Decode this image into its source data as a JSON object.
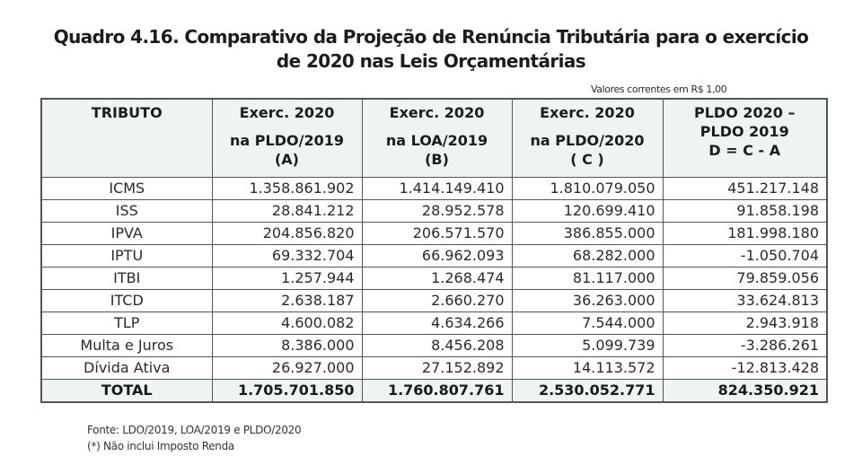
{
  "title": {
    "line1": "Quadro 4.16. Comparativo da Projeção de Renúncia Tributária para o exercício",
    "line2": "de 2020 nas Leis Orçamentárias"
  },
  "units_note": "Valores correntes em R$ 1,00",
  "table": {
    "headers": [
      {
        "lines": [
          "TRIBUTO"
        ]
      },
      {
        "lines": [
          "Exerc. 2020",
          "na PLDO/2019",
          "(A)"
        ]
      },
      {
        "lines": [
          "Exerc. 2020",
          "na LOA/2019",
          "(B)"
        ]
      },
      {
        "lines": [
          "Exerc. 2020",
          "na PLDO/2020",
          "( C )"
        ]
      },
      {
        "lines": [
          "PLDO 2020 –",
          "PLDO 2019",
          "D = C - A"
        ]
      }
    ],
    "rows": [
      {
        "tributo": "ICMS",
        "a": "1.358.861.902",
        "b": "1.414.149.410",
        "c": "1.810.079.050",
        "d": "451.217.148"
      },
      {
        "tributo": "ISS",
        "a": "28.841.212",
        "b": "28.952.578",
        "c": "120.699.410",
        "d": "91.858.198"
      },
      {
        "tributo": "IPVA",
        "a": "204.856.820",
        "b": "206.571.570",
        "c": "386.855.000",
        "d": "181.998.180"
      },
      {
        "tributo": "IPTU",
        "a": "69.332.704",
        "b": "66.962.093",
        "c": "68.282.000",
        "d": "-1.050.704"
      },
      {
        "tributo": "ITBI",
        "a": "1.257.944",
        "b": "1.268.474",
        "c": "81.117.000",
        "d": "79.859.056"
      },
      {
        "tributo": "ITCD",
        "a": "2.638.187",
        "b": "2.660.270",
        "c": "36.263.000",
        "d": "33.624.813"
      },
      {
        "tributo": "TLP",
        "a": "4.600.082",
        "b": "4.634.266",
        "c": "7.544.000",
        "d": "2.943.918"
      },
      {
        "tributo": "Multa e Juros",
        "a": "8.386.000",
        "b": "8.456.208",
        "c": "5.099.739",
        "d": "-3.286.261"
      },
      {
        "tributo": "Dívida Ativa",
        "a": "26.927.000",
        "b": "27.152.892",
        "c": "14.113.572",
        "d": "-12.813.428"
      }
    ],
    "total": {
      "tributo": "TOTAL",
      "a": "1.705.701.850",
      "b": "1.760.807.761",
      "c": "2.530.052.771",
      "d": "824.350.921"
    }
  },
  "notes": {
    "source": "Fonte: LDO/2019, LOA/2019 e PLDO/2020",
    "footnote": "(*) Não inclui Imposto Renda"
  },
  "colors": {
    "header_bg": "#eef4f2",
    "border": "#555555",
    "text": "#2a2a2a"
  }
}
